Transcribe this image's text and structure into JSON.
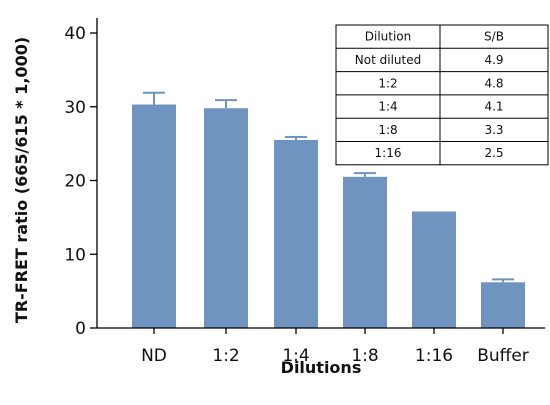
{
  "chart_data": {
    "type": "bar",
    "categories": [
      "ND",
      "1:2",
      "1:4",
      "1:8",
      "1:16",
      "Buffer"
    ],
    "values": [
      30.3,
      29.8,
      25.5,
      20.5,
      15.8,
      6.2
    ],
    "errors": [
      1.6,
      1.1,
      0.4,
      0.5,
      0,
      0.4
    ],
    "xlabel": "Dilutions",
    "ylabel": "TR-FRET ratio (665/615 * 1,000)",
    "ylim": [
      0,
      40
    ],
    "yticks": [
      0,
      10,
      20,
      30,
      40
    ],
    "bar_color": "#6f94c0",
    "grid": false,
    "inset_table": {
      "headers": [
        "Dilution",
        "S/B"
      ],
      "rows": [
        [
          "Not diluted",
          "4.9"
        ],
        [
          "1:2",
          "4.8"
        ],
        [
          "1:4",
          "4.1"
        ],
        [
          "1:8",
          "3.3"
        ],
        [
          "1:16",
          "2.5"
        ]
      ]
    }
  }
}
